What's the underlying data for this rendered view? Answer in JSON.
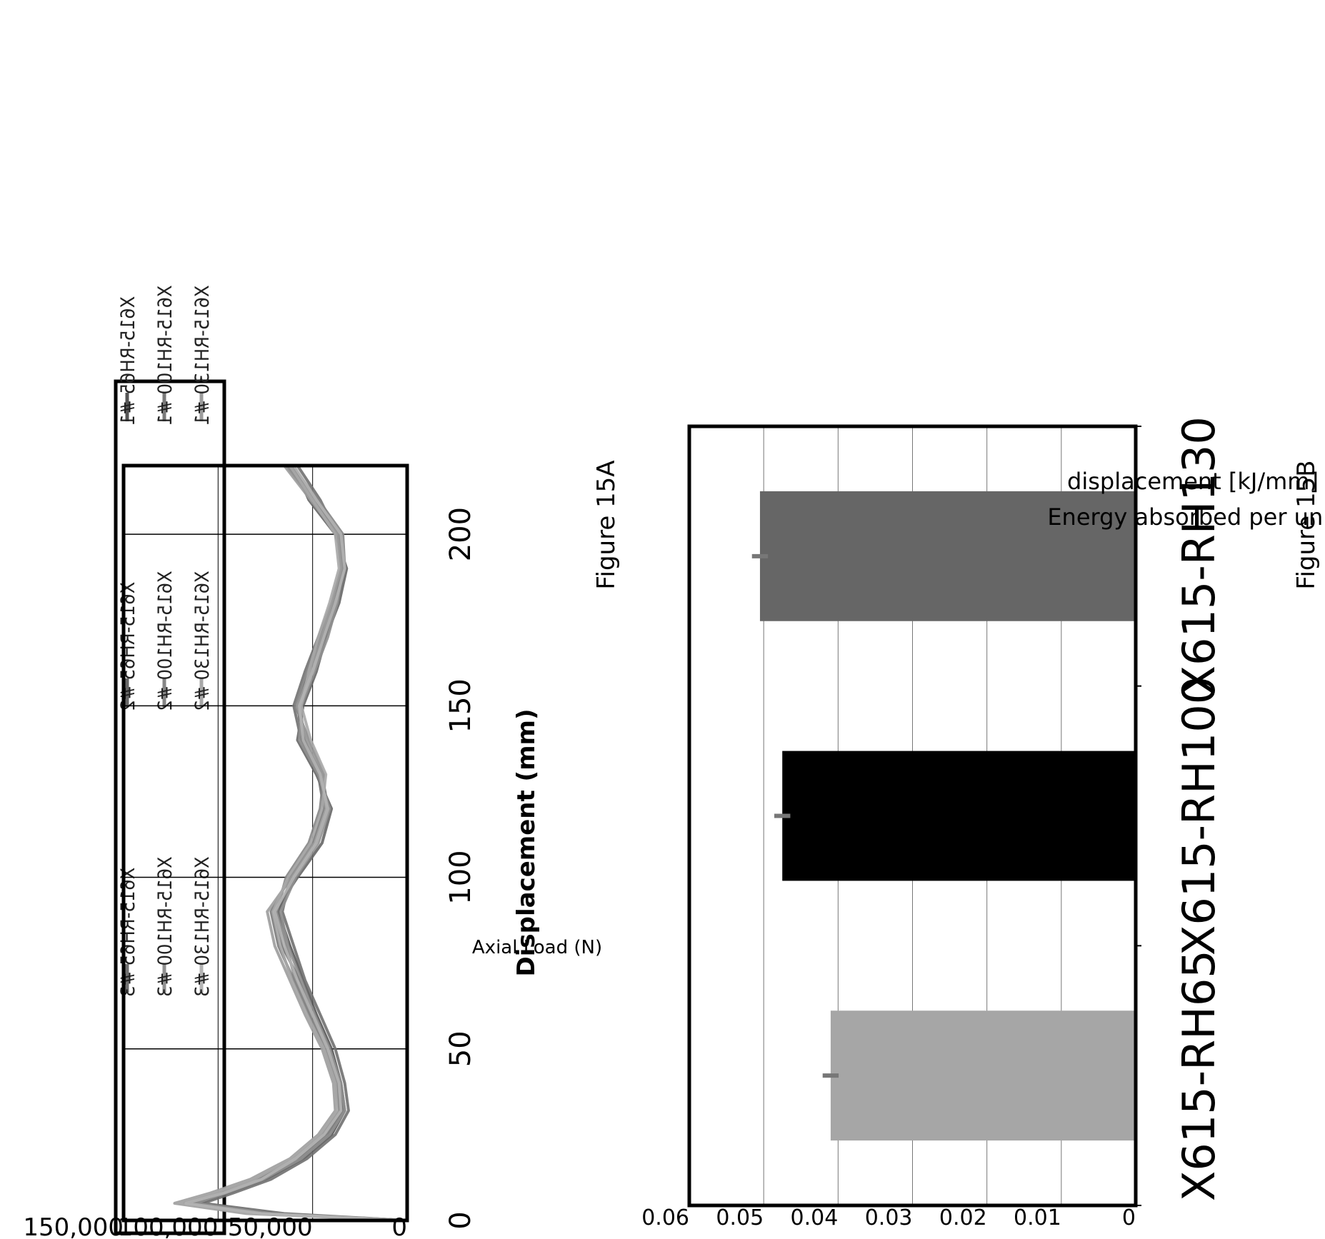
{
  "figure_a": {
    "caption": "Figure 15A",
    "chart_data": {
      "type": "line",
      "title": "",
      "xlabel": "Displacement (mm)",
      "ylabel": "Axial Load (N)",
      "xlim": [
        0,
        220
      ],
      "ylim": [
        0,
        150000
      ],
      "x_ticks": [
        "0",
        "50",
        "100",
        "150",
        "200"
      ],
      "y_ticks": [
        "0",
        "50,000",
        "100,000",
        "150,000"
      ],
      "grid": true,
      "legend": "top",
      "legend_entries": [
        "X615-RH65 #1",
        "X615-RH65 #2",
        "X615-RH65 #3",
        "X615-RH100 #1",
        "X615-RH100 #2",
        "X615-RH100 #3",
        "X615-RH130 #1",
        "X615-RH130 #2",
        "X615-RH130 #3"
      ],
      "x": [
        0,
        2,
        5,
        8,
        12,
        18,
        25,
        32,
        40,
        50,
        60,
        70,
        80,
        90,
        100,
        110,
        120,
        130,
        140,
        150,
        160,
        170,
        180,
        190,
        200,
        210,
        220
      ],
      "series": [
        {
          "name": "X615-RH65 #1",
          "color": "#555555",
          "values": [
            0,
            70000,
            110000,
            95000,
            75000,
            55000,
            40000,
            33000,
            35000,
            40000,
            48000,
            55000,
            62000,
            68000,
            60000,
            48000,
            42000,
            45000,
            55000,
            58000,
            52000,
            45000,
            38000,
            33000,
            35000,
            48000,
            62000
          ]
        },
        {
          "name": "X615-RH65 #2",
          "color": "#666666",
          "values": [
            0,
            75000,
            114000,
            98000,
            78000,
            57000,
            42000,
            34000,
            36000,
            42000,
            50000,
            57000,
            66000,
            70000,
            58000,
            45000,
            40000,
            48000,
            58000,
            55000,
            48000,
            43000,
            36000,
            32000,
            38000,
            52000,
            60000
          ]
        },
        {
          "name": "X615-RH65 #3",
          "color": "#707070",
          "values": [
            0,
            65000,
            108000,
            92000,
            72000,
            53000,
            38000,
            31000,
            33000,
            38000,
            46000,
            54000,
            60000,
            66000,
            62000,
            50000,
            44000,
            47000,
            56000,
            60000,
            54000,
            47000,
            40000,
            35000,
            37000,
            46000,
            58000
          ]
        },
        {
          "name": "X615-RH100 #1",
          "color": "#7a7a7a",
          "values": [
            0,
            80000,
            118000,
            100000,
            80000,
            60000,
            45000,
            36000,
            38000,
            44000,
            52000,
            60000,
            68000,
            72000,
            62000,
            50000,
            44000,
            46000,
            54000,
            57000,
            50000,
            44000,
            38000,
            34000,
            36000,
            50000,
            64000
          ]
        },
        {
          "name": "X615-RH100 #2",
          "color": "#858585",
          "values": [
            0,
            78000,
            116000,
            99000,
            79000,
            58000,
            43000,
            35000,
            37000,
            43000,
            51000,
            59000,
            64000,
            69000,
            64000,
            52000,
            46000,
            44000,
            52000,
            59000,
            53000,
            46000,
            39000,
            33000,
            34000,
            47000,
            61000
          ]
        },
        {
          "name": "X615-RH100 #3",
          "color": "#909090",
          "values": [
            0,
            72000,
            112000,
            96000,
            76000,
            56000,
            41000,
            33000,
            35000,
            41000,
            49000,
            56000,
            63000,
            67000,
            59000,
            47000,
            41000,
            47000,
            57000,
            56000,
            49000,
            42000,
            37000,
            34000,
            36000,
            49000,
            63000
          ]
        },
        {
          "name": "X615-RH130 #1",
          "color": "#9c9c9c",
          "values": [
            0,
            85000,
            123000,
            104000,
            83000,
            62000,
            47000,
            38000,
            39000,
            45000,
            54000,
            62000,
            70000,
            74000,
            61000,
            49000,
            43000,
            45000,
            53000,
            58000,
            51000,
            45000,
            40000,
            35000,
            37000,
            51000,
            65000
          ]
        },
        {
          "name": "X615-RH130 #2",
          "color": "#a8a8a8",
          "values": [
            0,
            82000,
            121000,
            102000,
            81000,
            61000,
            46000,
            37000,
            38000,
            44000,
            53000,
            61000,
            67000,
            71000,
            63000,
            51000,
            45000,
            43000,
            51000,
            56000,
            52000,
            47000,
            41000,
            36000,
            38000,
            50000,
            62000
          ]
        },
        {
          "name": "X615-RH130 #3",
          "color": "#b4b4b4",
          "values": [
            0,
            77000,
            117000,
            97000,
            77000,
            59000,
            44000,
            35000,
            36000,
            42000,
            50000,
            58000,
            65000,
            70000,
            60000,
            48000,
            42000,
            46000,
            55000,
            57000,
            50000,
            44000,
            38000,
            33000,
            35000,
            48000,
            60000
          ]
        }
      ]
    }
  },
  "figure_b": {
    "caption": "Figure 15B",
    "chart_data": {
      "type": "bar",
      "title": "",
      "xlabel": "",
      "ylabel_lines": [
        "Energy absorbed per unit",
        "displacement [kJ/mm]"
      ],
      "categories": [
        "X615-RH65",
        "X615-RH100",
        "X615-RH130"
      ],
      "values": [
        0.041,
        0.0475,
        0.0505
      ],
      "errors": [
        0.0005,
        0.0005,
        0.0005
      ],
      "colors": [
        "#a6a6a6",
        "#000000",
        "#666666"
      ],
      "ylim": [
        0,
        0.06
      ],
      "y_ticks": [
        "0",
        "0.01",
        "0.02",
        "0.03",
        "0.04",
        "0.05",
        "0.06"
      ],
      "grid": true,
      "legend": "none"
    }
  }
}
